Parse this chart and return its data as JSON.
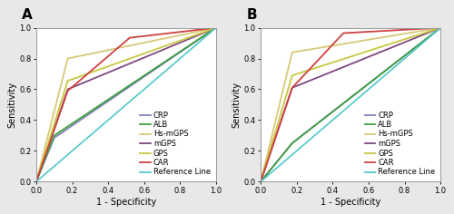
{
  "panel_A": {
    "title": "A",
    "curves": {
      "CRP": {
        "x": [
          0,
          0.1,
          1.0
        ],
        "y": [
          0,
          0.285,
          1.0
        ],
        "color": "#8080c0",
        "lw": 1.3
      },
      "ALB": {
        "x": [
          0,
          0.1,
          1.0
        ],
        "y": [
          0,
          0.3,
          1.0
        ],
        "color": "#40a040",
        "lw": 1.3
      },
      "Hs-mGPS": {
        "x": [
          0,
          0.175,
          1.0
        ],
        "y": [
          0,
          0.8,
          1.0
        ],
        "color": "#d8c878",
        "lw": 1.3
      },
      "mGPS": {
        "x": [
          0,
          0.175,
          1.0
        ],
        "y": [
          0,
          0.6,
          1.0
        ],
        "color": "#804880",
        "lw": 1.3
      },
      "GPS": {
        "x": [
          0,
          0.175,
          1.0
        ],
        "y": [
          0,
          0.655,
          1.0
        ],
        "color": "#c8c840",
        "lw": 1.3
      },
      "CAR": {
        "x": [
          0,
          0.175,
          0.52,
          1.0
        ],
        "y": [
          0,
          0.59,
          0.935,
          1.0
        ],
        "color": "#d04040",
        "lw": 1.3
      },
      "Reference Line": {
        "x": [
          0,
          1.0
        ],
        "y": [
          0,
          1.0
        ],
        "color": "#50c8c8",
        "lw": 1.2
      }
    }
  },
  "panel_B": {
    "title": "B",
    "curves": {
      "CRP": {
        "x": [
          0,
          0.175,
          1.0
        ],
        "y": [
          0,
          0.25,
          1.0
        ],
        "color": "#8080c0",
        "lw": 1.3
      },
      "ALB": {
        "x": [
          0,
          0.175,
          1.0
        ],
        "y": [
          0,
          0.25,
          1.0
        ],
        "color": "#40a040",
        "lw": 1.3
      },
      "Hs-mGPS": {
        "x": [
          0,
          0.175,
          1.0
        ],
        "y": [
          0,
          0.84,
          1.0
        ],
        "color": "#d8c878",
        "lw": 1.3
      },
      "mGPS": {
        "x": [
          0,
          0.175,
          1.0
        ],
        "y": [
          0,
          0.61,
          1.0
        ],
        "color": "#804880",
        "lw": 1.3
      },
      "GPS": {
        "x": [
          0,
          0.175,
          1.0
        ],
        "y": [
          0,
          0.69,
          1.0
        ],
        "color": "#c8c840",
        "lw": 1.3
      },
      "CAR": {
        "x": [
          0,
          0.175,
          0.46,
          1.0
        ],
        "y": [
          0,
          0.61,
          0.965,
          1.0
        ],
        "color": "#d04040",
        "lw": 1.3
      },
      "Reference Line": {
        "x": [
          0,
          1.0
        ],
        "y": [
          0,
          1.0
        ],
        "color": "#50c8c8",
        "lw": 1.2
      }
    }
  },
  "legend_order": [
    "CRP",
    "ALB",
    "Hs-mGPS",
    "mGPS",
    "GPS",
    "CAR",
    "Reference Line"
  ],
  "xlabel": "1 - Specificity",
  "ylabel": "Sensitivity",
  "xlim": [
    0.0,
    1.0
  ],
  "ylim": [
    0.0,
    1.0
  ],
  "xticks": [
    0.0,
    0.2,
    0.4,
    0.6,
    0.8,
    1.0
  ],
  "yticks": [
    0.0,
    0.2,
    0.4,
    0.6,
    0.8,
    1.0
  ],
  "bg_color": "#ffffff",
  "fig_bg_color": "#e8e8e8",
  "legend_fontsize": 6.0,
  "axis_fontsize": 7.0,
  "tick_fontsize": 6.0,
  "title_fontsize": 11
}
